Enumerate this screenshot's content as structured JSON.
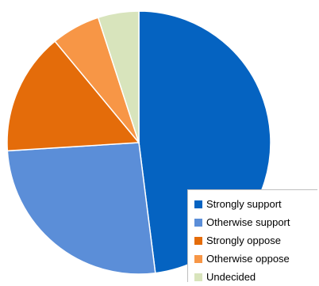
{
  "chart_data": {
    "type": "pie",
    "title": "",
    "start_angle_deg": 0,
    "direction": "clockwise",
    "slices": [
      {
        "label": "Strongly support",
        "value": 48,
        "color": "#0563c1"
      },
      {
        "label": "Otherwise support",
        "value": 26,
        "color": "#5b8ed8"
      },
      {
        "label": "Strongly oppose",
        "value": 15,
        "color": "#e46c0a"
      },
      {
        "label": "Otherwise oppose",
        "value": 6,
        "color": "#f79646"
      },
      {
        "label": "Undecided",
        "value": 5,
        "color": "#d8e4bc"
      }
    ],
    "legend": {
      "position": "bottom-right"
    }
  }
}
